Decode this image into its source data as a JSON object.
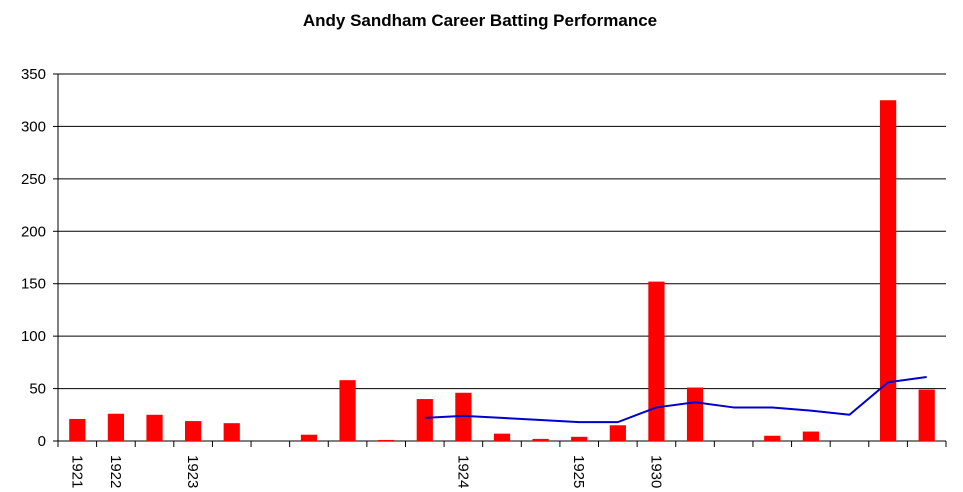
{
  "chart_data": {
    "type": "bar",
    "title": "Andy Sandham Career Batting Performance",
    "categories": [
      "1921",
      "1922",
      null,
      "1923",
      null,
      null,
      null,
      null,
      null,
      null,
      "1924",
      null,
      null,
      "1925",
      null,
      "1930",
      null,
      null,
      null,
      null,
      null,
      null,
      null
    ],
    "series": [
      {
        "type": "bar",
        "color": "#ff0000",
        "values": [
          21,
          26,
          25,
          19,
          17,
          null,
          6,
          58,
          1,
          40,
          46,
          7,
          2,
          4,
          15,
          152,
          51,
          null,
          5,
          9,
          null,
          325,
          49
        ]
      },
      {
        "type": "line",
        "color": "#0000cc",
        "values": [
          null,
          null,
          null,
          null,
          null,
          null,
          null,
          null,
          null,
          22,
          24,
          22,
          20,
          18,
          18,
          32,
          37,
          32,
          32,
          29,
          25,
          56,
          61
        ]
      }
    ],
    "ylim": [
      0,
      350
    ],
    "yticks": [
      0,
      50,
      100,
      150,
      200,
      250,
      300,
      350
    ],
    "grid": true
  }
}
